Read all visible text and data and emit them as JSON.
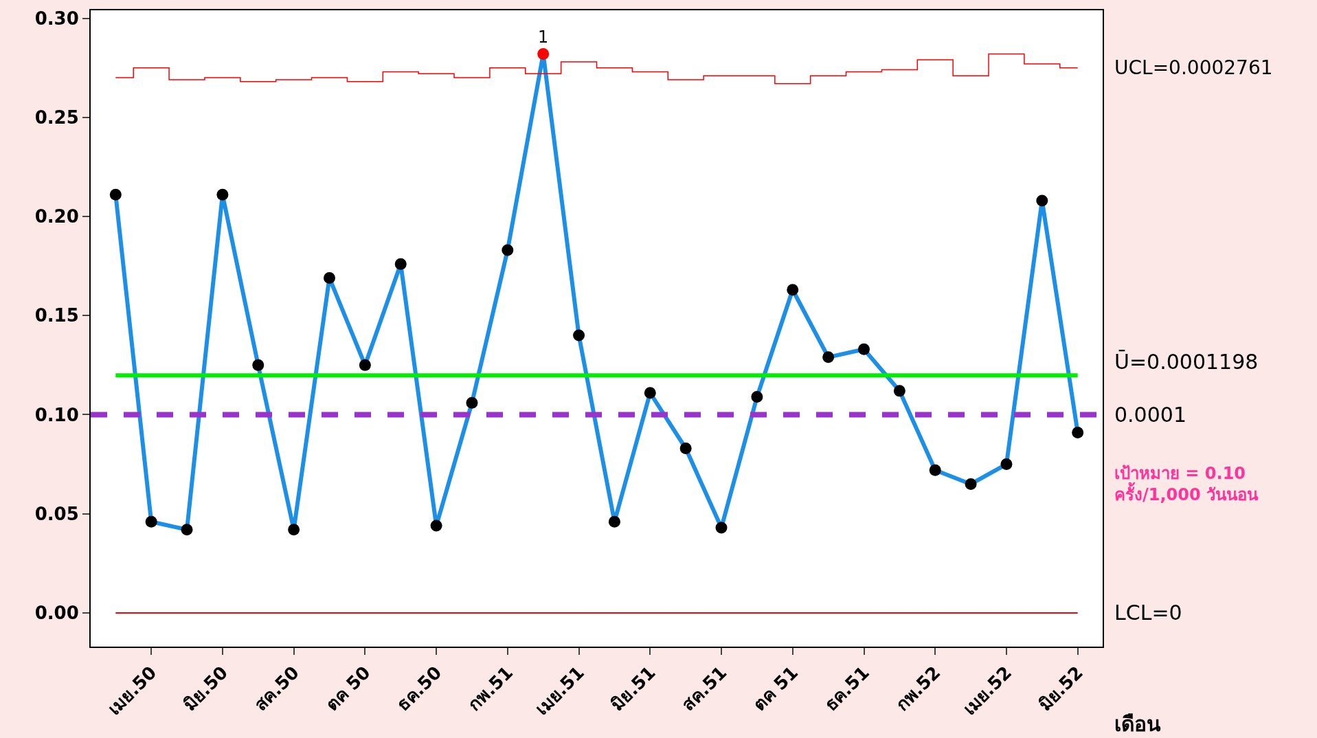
{
  "chart_data": {
    "type": "line",
    "xlabel": "เดือน",
    "categories": [
      null,
      "เมย.50",
      null,
      "มิย.50",
      null,
      "สค.50",
      null,
      "ตค 50",
      null,
      "ธค.50",
      null,
      "กพ.51",
      null,
      "เมย.51",
      null,
      "มิย.51",
      null,
      "สค.51",
      null,
      "ตค 51",
      null,
      "ธค.51",
      null,
      "กพ.52",
      null,
      "เมย.52",
      null,
      "มิย.52"
    ],
    "series": [
      {
        "color": "#1e8fe6",
        "marker": "circle",
        "colors": [
          "#000000",
          "#000000",
          "#000000",
          "#000000",
          "#000000",
          "#000000",
          "#000000",
          "#000000",
          "#000000",
          "#000000",
          "#000000",
          "#000000",
          "#ff0000",
          "#000000",
          "#000000",
          "#000000",
          "#000000",
          "#000000",
          "#000000",
          "#000000",
          "#000000",
          "#000000",
          "#000000",
          "#000000",
          "#000000",
          "#000000",
          "#000000",
          "#000000"
        ],
        "values": [
          0.211,
          0.046,
          0.042,
          0.211,
          0.125,
          0.042,
          0.169,
          0.125,
          0.176,
          0.044,
          0.106,
          0.183,
          0.282,
          0.14,
          0.046,
          0.111,
          0.083,
          0.043,
          0.109,
          0.163,
          0.129,
          0.133,
          0.112,
          0.072,
          0.065,
          0.075,
          0.208,
          0.091
        ]
      },
      {
        "type": "step",
        "color": "#ff0000",
        "marker": "none",
        "values": [
          0.27,
          0.275,
          0.269,
          0.27,
          0.268,
          0.269,
          0.27,
          0.268,
          0.273,
          0.272,
          0.27,
          0.275,
          0.272,
          0.278,
          0.275,
          0.273,
          0.269,
          0.271,
          0.271,
          0.267,
          0.271,
          0.273,
          0.274,
          0.279,
          0.271,
          0.282,
          0.277,
          0.275
        ]
      }
    ],
    "ref_lines": [
      {
        "axis": "y",
        "value": 0.1198,
        "color": "#00ee00",
        "line_style": "solid"
      },
      {
        "axis": "y",
        "value": 0.1,
        "color": "#9933cc",
        "line_style": "dashed"
      },
      {
        "axis": "y",
        "value": 0,
        "color": "#ff0000",
        "line_style": "solid"
      }
    ],
    "annotations": [
      "1",
      {
        "text": "UCL=0.0002761",
        "x": "มิย.52",
        "y": 0.275
      },
      "Ū=0.0001198",
      "0.0001",
      "LCL=0",
      "เป้าหมาย = 0.10 ครั้ง/1,000 วันนอน"
    ],
    "ylim": [
      -0.017,
      0.304
    ],
    "yticks": [
      {
        "value": 0,
        "label": "0.00"
      },
      {
        "value": 0.05,
        "label": "0.05"
      },
      {
        "value": 0.1,
        "label": "0.10"
      },
      {
        "value": 0.15,
        "label": "0.15"
      },
      {
        "value": 0.2,
        "label": "0.20"
      },
      {
        "value": 0.25,
        "label": "0.25"
      },
      {
        "value": 0.3,
        "label": "0.30"
      }
    ]
  }
}
